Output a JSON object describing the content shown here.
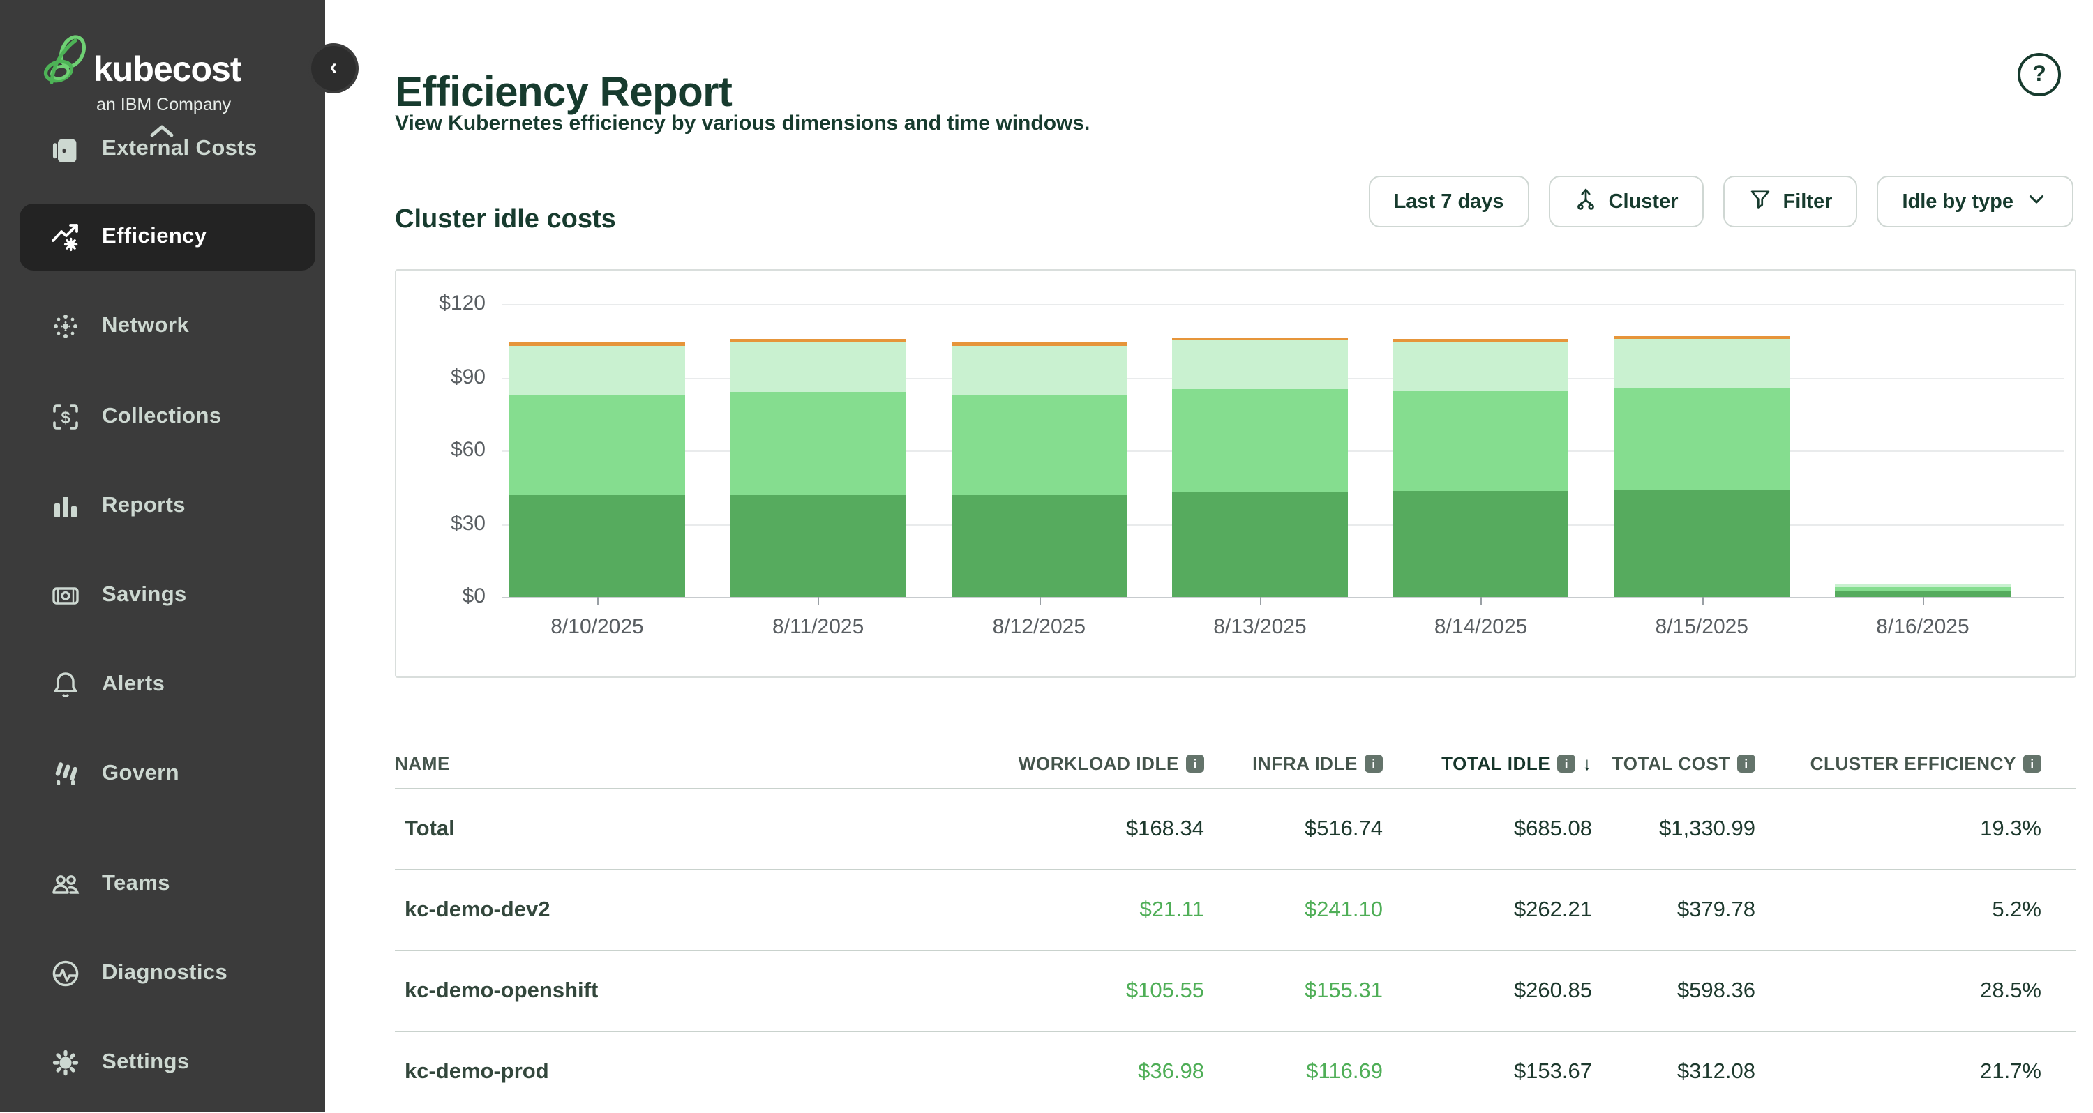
{
  "sidebar": {
    "brand": "kubecost",
    "tagline": "an IBM Company",
    "items": [
      {
        "label": "External Costs",
        "icon": "external-costs-icon",
        "active": false
      },
      {
        "label": "Efficiency",
        "icon": "efficiency-icon",
        "active": true
      },
      {
        "label": "Network",
        "icon": "network-icon",
        "active": false
      },
      {
        "label": "Collections",
        "icon": "collections-icon",
        "active": false
      },
      {
        "label": "Reports",
        "icon": "reports-icon",
        "active": false
      },
      {
        "label": "Savings",
        "icon": "savings-icon",
        "active": false
      },
      {
        "label": "Alerts",
        "icon": "alerts-icon",
        "active": false
      },
      {
        "label": "Govern",
        "icon": "govern-icon",
        "active": false
      },
      {
        "label": "Teams",
        "icon": "teams-icon",
        "active": false
      },
      {
        "label": "Diagnostics",
        "icon": "diagnostics-icon",
        "active": false
      },
      {
        "label": "Settings",
        "icon": "settings-icon",
        "active": false
      }
    ]
  },
  "header": {
    "title": "Efficiency Report",
    "subtitle": "View Kubernetes efficiency by various dimensions and time windows."
  },
  "section": {
    "title": "Cluster idle costs"
  },
  "toolbar": {
    "time_range": "Last 7 days",
    "aggregate": "Cluster",
    "filter": "Filter",
    "idle_by": "Idle by type"
  },
  "chart_data": {
    "type": "bar",
    "stacked": true,
    "categories": [
      "8/10/2025",
      "8/11/2025",
      "8/12/2025",
      "8/13/2025",
      "8/14/2025",
      "8/15/2025",
      "8/16/2025"
    ],
    "series": [
      {
        "name": "dark-green-segment",
        "color": "#56ab5e",
        "values": [
          42,
          42,
          42,
          43,
          43.5,
          44,
          2.5
        ]
      },
      {
        "name": "medium-green-segment",
        "color": "#85dd8f",
        "values": [
          41,
          42,
          41,
          42,
          41,
          41.5,
          1.6
        ]
      },
      {
        "name": "light-green-segment",
        "color": "#c9f1d0",
        "values": [
          20,
          20.5,
          20,
          20,
          20,
          20,
          1.3
        ]
      },
      {
        "name": "orange-segment",
        "color": "#e6953a",
        "values": [
          1.5,
          1.5,
          1.5,
          1.5,
          1.5,
          1.5,
          0
        ]
      }
    ],
    "title": "Cluster idle costs",
    "xlabel": "",
    "ylabel": "",
    "ylim": [
      0,
      120
    ],
    "yticks": [
      0,
      30,
      60,
      90,
      120
    ],
    "ytick_labels": [
      "$0",
      "$30",
      "$60",
      "$90",
      "$120"
    ],
    "grid": true,
    "legend": false
  },
  "table": {
    "columns": [
      {
        "label": "NAME",
        "info": false,
        "sorted": false
      },
      {
        "label": "WORKLOAD IDLE",
        "info": true,
        "sorted": false
      },
      {
        "label": "INFRA IDLE",
        "info": true,
        "sorted": false
      },
      {
        "label": "TOTAL IDLE",
        "info": true,
        "sorted": true
      },
      {
        "label": "TOTAL COST",
        "info": true,
        "sorted": false
      },
      {
        "label": "CLUSTER EFFICIENCY",
        "info": true,
        "sorted": false
      }
    ],
    "rows": [
      {
        "name": "Total",
        "values": [
          "$168.34",
          "$516.74",
          "$685.08",
          "$1,330.99",
          "19.3%"
        ],
        "green": false
      },
      {
        "name": "kc-demo-dev2",
        "values": [
          "$21.11",
          "$241.10",
          "$262.21",
          "$379.78",
          "5.2%"
        ],
        "green": true
      },
      {
        "name": "kc-demo-openshift",
        "values": [
          "$105.55",
          "$155.31",
          "$260.85",
          "$598.36",
          "28.5%"
        ],
        "green": true
      },
      {
        "name": "kc-demo-prod",
        "values": [
          "$36.98",
          "$116.69",
          "$153.67",
          "$312.08",
          "21.7%"
        ],
        "green": true
      }
    ]
  }
}
